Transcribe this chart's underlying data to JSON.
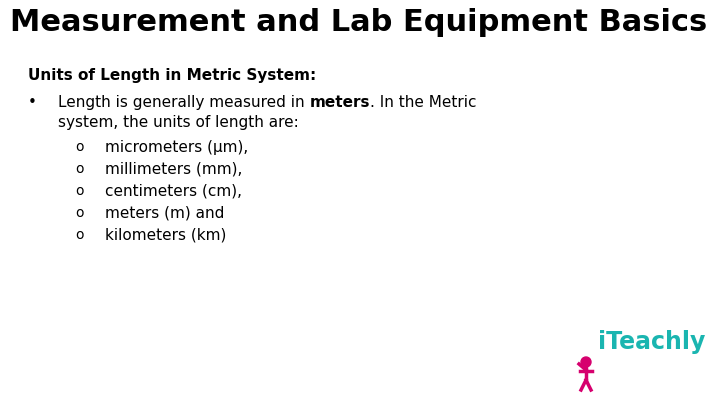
{
  "background_color": "#ffffff",
  "title": "Measurement and Lab Equipment Basics",
  "title_fontsize": 22,
  "title_color": "#000000",
  "subtitle": "Units of Length in Metric System:",
  "subtitle_fontsize": 11,
  "bullet_text_normal": "Length is generally measured in ",
  "bullet_text_bold": "meters",
  "bullet_text_after": ". In the Metric",
  "bullet_text_line2": "system, the units of length are:",
  "bullet_fontsize": 11,
  "sub_bullets": [
    "micrometers (μm),",
    "millimeters (mm),",
    "centimeters (cm),",
    "meters (m) and",
    "kilometers (km)"
  ],
  "sub_bullet_fontsize": 11,
  "logo_text": "iTeachly",
  "logo_color": "#1ab5b0",
  "logo_icon_color": "#d6006e",
  "logo_fontsize": 17
}
